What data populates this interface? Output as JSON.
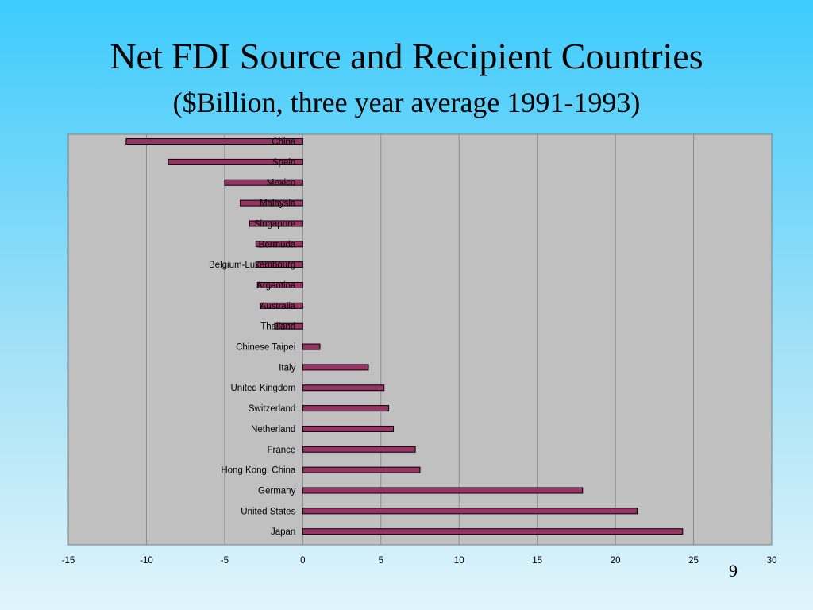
{
  "slide": {
    "title": "Net FDI Source and Recipient Countries",
    "subtitle": "($Billion, three year average 1991-1993)",
    "page_number": "9"
  },
  "colors": {
    "plot_background": "#c0c0c0",
    "bar_fill": "#993366",
    "bar_stroke": "#000000",
    "gridline": "#8a8a8a"
  },
  "chart_data": {
    "type": "bar",
    "orientation": "horizontal",
    "categories": [
      "China",
      "Spain",
      "Mexico",
      "Malaysia",
      "Singapore",
      "Bermuda",
      "Belgium-Luxembourg",
      "Argentina",
      "Australia",
      "Thailand",
      "Chinese Taipei",
      "Italy",
      "United Kingdom",
      "Switzerland",
      "Netherland",
      "France",
      "Hong Kong, China",
      "Germany",
      "United States",
      "Japan"
    ],
    "values": [
      -11.3,
      -8.6,
      -5.0,
      -4.0,
      -3.4,
      -3.0,
      -3.0,
      -2.9,
      -2.7,
      -1.8,
      1.1,
      4.2,
      5.2,
      5.5,
      5.8,
      7.2,
      7.5,
      17.9,
      21.4,
      24.3
    ],
    "xlim": [
      -15,
      30
    ],
    "xticks": [
      "-15",
      "-10",
      "-5",
      "0",
      "5",
      "10",
      "15",
      "20",
      "25",
      "30"
    ],
    "grid": "vertical"
  }
}
